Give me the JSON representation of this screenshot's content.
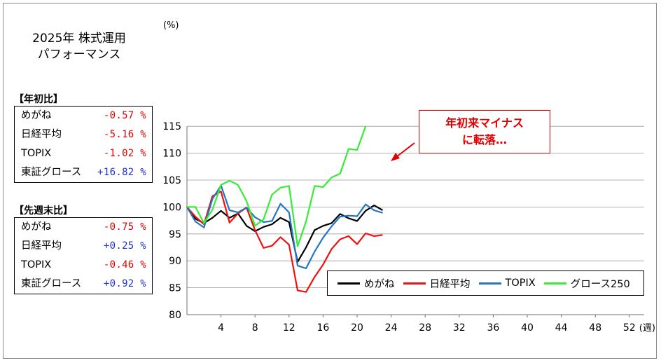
{
  "panel": {
    "title_line1": "2025年 株式運用",
    "title_line2": "パフォーマンス",
    "ytd_label": "【年初比】",
    "wow_label": "【先週末比】",
    "ytd": [
      {
        "name": "めがね",
        "value": "-0.57 %",
        "color": "#e00000"
      },
      {
        "name": "日経平均",
        "value": "-5.16 %",
        "color": "#e00000"
      },
      {
        "name": "TOPIX",
        "value": "-1.02 %",
        "color": "#e00000"
      },
      {
        "name": "東証グロース",
        "value": "+16.82 %",
        "color": "#1f2fd0"
      }
    ],
    "wow": [
      {
        "name": "めがね",
        "value": "-0.75 %",
        "color": "#e00000"
      },
      {
        "name": "日経平均",
        "value": "+0.25 %",
        "color": "#1f2fd0"
      },
      {
        "name": "TOPIX",
        "value": "-0.46 %",
        "color": "#e00000"
      },
      {
        "name": "東証グロース",
        "value": "+0.92 %",
        "color": "#1f2fd0"
      }
    ]
  },
  "callout": {
    "line1": "年初来マイナス",
    "line2": "に転落…"
  },
  "chart_data": {
    "type": "line",
    "ylabel": "(%)",
    "xlabel_unit": "(週)",
    "ylim": [
      80,
      115
    ],
    "y_ticks": [
      80,
      85,
      90,
      95,
      100,
      105,
      110,
      115
    ],
    "xlim": [
      0,
      53
    ],
    "x_ticks": [
      4,
      8,
      12,
      16,
      20,
      24,
      28,
      32,
      36,
      40,
      44,
      48,
      52
    ],
    "grid": "horizontal",
    "legend_position": "bottom-right",
    "series": [
      {
        "name": "めがね",
        "color": "#000000",
        "x": [
          0,
          1,
          2,
          3,
          4,
          5,
          6,
          7,
          8,
          9,
          10,
          11,
          12,
          13,
          14,
          15,
          16,
          17,
          18,
          19,
          20,
          21,
          22,
          23
        ],
        "values": [
          100,
          97.8,
          97.0,
          98.0,
          99.3,
          98.0,
          98.8,
          96.5,
          95.5,
          96.3,
          96.8,
          98.0,
          97.2,
          89.8,
          92.5,
          95.7,
          96.5,
          97.0,
          98.7,
          97.9,
          97.4,
          99.3,
          100.3,
          99.4
        ]
      },
      {
        "name": "日経平均",
        "color": "#ee1111",
        "x": [
          0,
          1,
          2,
          3,
          4,
          5,
          6,
          7,
          8,
          9,
          10,
          11,
          12,
          13,
          14,
          15,
          16,
          17,
          18,
          19,
          20,
          21,
          22,
          23
        ],
        "values": [
          100,
          98.2,
          96.8,
          102.0,
          102.9,
          97.1,
          98.8,
          99.9,
          95.7,
          92.4,
          92.8,
          94.4,
          93.0,
          84.5,
          84.2,
          87.0,
          89.3,
          92.2,
          94.0,
          94.6,
          93.1,
          95.1,
          94.6,
          94.8
        ]
      },
      {
        "name": "TOPIX",
        "color": "#2376c2",
        "x": [
          0,
          1,
          2,
          3,
          4,
          5,
          6,
          7,
          8,
          9,
          10,
          11,
          12,
          13,
          14,
          15,
          16,
          17,
          18,
          19,
          20,
          21,
          22,
          23
        ],
        "values": [
          100,
          97.3,
          96.2,
          101.5,
          104.0,
          99.4,
          99.0,
          99.9,
          98.1,
          97.2,
          97.4,
          100.6,
          99.0,
          89.1,
          88.6,
          91.7,
          94.3,
          96.4,
          98.2,
          98.4,
          98.3,
          100.5,
          99.4,
          98.9
        ]
      },
      {
        "name": "グロース250",
        "color": "#33ee33",
        "x": [
          0,
          1,
          2,
          3,
          4,
          5,
          6,
          7,
          8,
          9,
          10,
          11,
          12,
          13,
          14,
          15,
          16,
          17,
          18,
          19,
          20,
          21
        ],
        "values": [
          100,
          100.0,
          97.0,
          99.5,
          104.1,
          104.9,
          104.1,
          101.1,
          96.5,
          97.7,
          102.3,
          103.6,
          103.9,
          92.7,
          97.3,
          103.9,
          103.7,
          105.5,
          106.2,
          110.8,
          110.6,
          115.0
        ]
      }
    ]
  }
}
